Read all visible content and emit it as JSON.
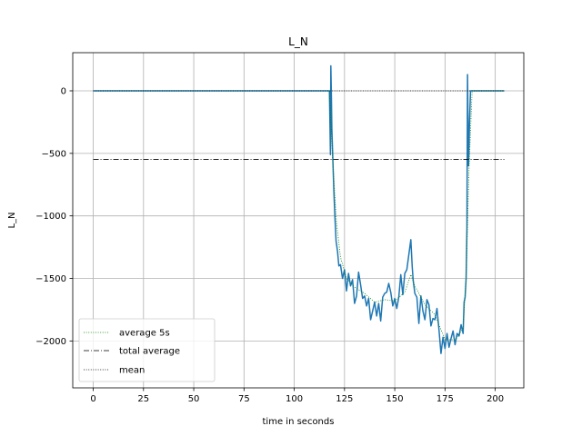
{
  "chart_data": {
    "type": "line",
    "title": "L_N",
    "xlabel": "time in seconds",
    "ylabel": "L_N",
    "xlim": [
      -10.2,
      214.2
    ],
    "ylim": [
      -2375,
      305
    ],
    "xticks": [
      0,
      25,
      50,
      75,
      100,
      125,
      150,
      175,
      200
    ],
    "yticks": [
      0,
      -500,
      -1000,
      -1500,
      -2000
    ],
    "ytick_labels": [
      "0",
      "−500",
      "−1000",
      "−1500",
      "−2000"
    ],
    "grid": true,
    "legend_position": "lower-left",
    "series": [
      {
        "name": "",
        "color": "#1f77b4",
        "style": "solid",
        "x": [
          0,
          117.5,
          118,
          118.2,
          118.5,
          118.7,
          119.2,
          119.7,
          120.2,
          120.8,
          121.5,
          122.2,
          123,
          124,
          125,
          126,
          127,
          128,
          129,
          130,
          131,
          132,
          133,
          134,
          135,
          136,
          137,
          138,
          139,
          140,
          141,
          142,
          143,
          144,
          145,
          146,
          147,
          148,
          149,
          150,
          151,
          152,
          153,
          154,
          155,
          156,
          157,
          158,
          158.7,
          159.2,
          160,
          161,
          162,
          163,
          164,
          165,
          166,
          167,
          168,
          169,
          170,
          171,
          172,
          173,
          174,
          175,
          176,
          177,
          178,
          179,
          180,
          181,
          182,
          183,
          184,
          184.5,
          185,
          185.5,
          185.9,
          186.2,
          186.7,
          187.2,
          187.7,
          188.5,
          190,
          204.5
        ],
        "y": [
          0,
          0,
          -510,
          200,
          -60,
          -300,
          -550,
          -800,
          -1000,
          -1200,
          -1280,
          -1400,
          -1390,
          -1500,
          -1430,
          -1600,
          -1460,
          -1560,
          -1510,
          -1700,
          -1640,
          -1450,
          -1550,
          -1660,
          -1640,
          -1720,
          -1660,
          -1830,
          -1760,
          -1690,
          -1800,
          -1700,
          -1840,
          -1650,
          -1620,
          -1610,
          -1540,
          -1610,
          -1720,
          -1660,
          -1740,
          -1650,
          -1470,
          -1630,
          -1460,
          -1430,
          -1310,
          -1190,
          -1410,
          -1520,
          -1620,
          -1650,
          -1860,
          -1640,
          -1760,
          -1830,
          -1670,
          -1710,
          -1880,
          -1820,
          -1830,
          -1740,
          -1910,
          -2100,
          -1970,
          -2060,
          -1940,
          -2050,
          -1980,
          -1920,
          -2030,
          -1940,
          -1960,
          -1870,
          -1940,
          -1690,
          -1650,
          -1500,
          -1100,
          130,
          -600,
          -250,
          0,
          0,
          0,
          0
        ]
      },
      {
        "name": "average 5s",
        "color": "#008000",
        "style": "dotted",
        "x": [
          0,
          117.5,
          119,
          121,
          123,
          126,
          130,
          135,
          140,
          145,
          150,
          155,
          158,
          160,
          165,
          170,
          175,
          180,
          184,
          185.5,
          187,
          188.5,
          190,
          204.5
        ],
        "y": [
          0,
          0,
          -520,
          -1050,
          -1330,
          -1500,
          -1570,
          -1620,
          -1690,
          -1670,
          -1680,
          -1610,
          -1470,
          -1560,
          -1710,
          -1790,
          -1990,
          -1990,
          -1900,
          -1500,
          -600,
          0,
          0,
          0
        ]
      },
      {
        "name": "total average",
        "color": "#000000",
        "style": "dashdot",
        "x": [
          0,
          204.5
        ],
        "y": [
          -548,
          -548
        ]
      },
      {
        "name": "mean",
        "color": "#000000",
        "style": "dotted",
        "x": [
          0,
          204.5
        ],
        "y": [
          0,
          0
        ]
      }
    ]
  }
}
